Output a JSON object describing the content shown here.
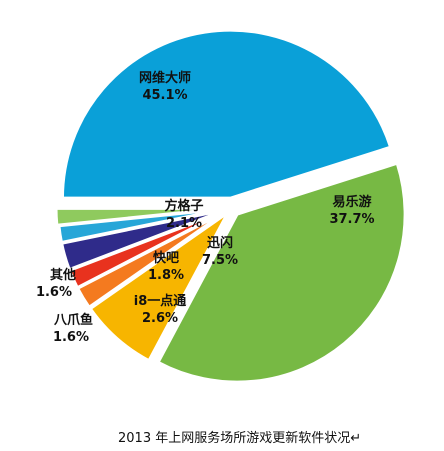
{
  "caption": "2013 年上网服务场所游戏更新软件状况↵",
  "chart_data": {
    "type": "pie",
    "title": "",
    "slices": [
      {
        "name": "网维大师",
        "value": 45.1,
        "label": "45.1%",
        "color": "#0aa0d8"
      },
      {
        "name": "易乐游",
        "value": 37.7,
        "label": "37.7%",
        "color": "#77b944"
      },
      {
        "name": "迅闪",
        "value": 7.5,
        "label": "7.5%",
        "color": "#f7b500"
      },
      {
        "name": "方格子",
        "value": 2.1,
        "label": "2.1%",
        "color": "#f47a1f"
      },
      {
        "name": "快吧",
        "value": 1.8,
        "label": "1.8%",
        "color": "#e8321e"
      },
      {
        "name": "i8一点通",
        "value": 2.6,
        "label": "2.6%",
        "color": "#2f2b8a"
      },
      {
        "name": "八爪鱼",
        "value": 1.6,
        "label": "1.6%",
        "color": "#27a6d8"
      },
      {
        "name": "其他",
        "value": 1.6,
        "label": "1.6%",
        "color": "#8fca5e"
      }
    ],
    "legend": "none"
  }
}
